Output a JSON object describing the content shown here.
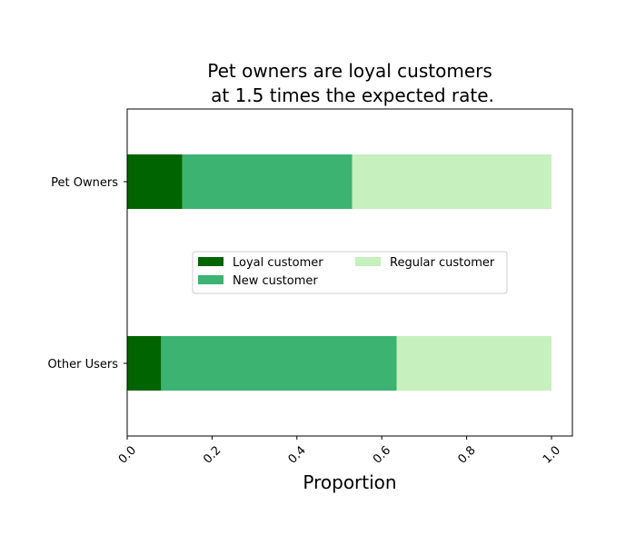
{
  "chart_data": {
    "type": "bar",
    "orientation": "horizontal",
    "stacked": true,
    "title": [
      "Pet owners are loyal customers",
      "at 1.5 times the expected rate."
    ],
    "xlabel": "Proportion",
    "ylabel": "",
    "xlim": [
      0,
      1.05
    ],
    "x_ticks": [
      "0.0",
      "0.2",
      "0.4",
      "0.6",
      "0.8",
      "1.0"
    ],
    "x_tick_values": [
      0.0,
      0.2,
      0.4,
      0.6,
      0.8,
      1.0
    ],
    "x_tick_rotation": 45,
    "categories": [
      "Pet Owners",
      "Other Users"
    ],
    "series": [
      {
        "name": "Loyal customer",
        "color": "#006400",
        "values": [
          0.13,
          0.08
        ]
      },
      {
        "name": "New customer",
        "color": "#3cb371",
        "values": [
          0.4,
          0.555
        ]
      },
      {
        "name": "Regular customer",
        "color": "#c6f0bd",
        "values": [
          0.47,
          0.365
        ]
      }
    ],
    "grid": false,
    "legend_position": "center"
  }
}
